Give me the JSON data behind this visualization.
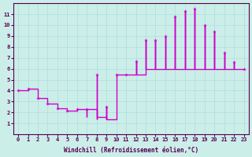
{
  "xlabel": "Windchill (Refroidissement éolien,°C)",
  "bg_color": "#cceee8",
  "grid_color": "#aadddd",
  "line_color": "#cc00cc",
  "xlim": [
    -0.5,
    23.5
  ],
  "ylim": [
    0,
    12
  ],
  "xticks": [
    0,
    1,
    2,
    3,
    4,
    5,
    6,
    7,
    8,
    9,
    10,
    11,
    12,
    13,
    14,
    15,
    16,
    17,
    18,
    19,
    20,
    21,
    22,
    23
  ],
  "yticks": [
    1,
    2,
    3,
    4,
    5,
    6,
    7,
    8,
    9,
    10,
    11
  ],
  "hours": [
    0,
    1,
    2,
    3,
    4,
    5,
    6,
    7,
    8,
    9,
    10,
    11,
    12,
    13,
    14,
    15,
    16,
    17,
    18,
    19,
    20,
    21,
    22,
    23
  ],
  "highs": [
    4.0,
    4.2,
    3.3,
    2.8,
    2.4,
    2.2,
    2.3,
    2.3,
    5.5,
    2.5,
    5.5,
    5.5,
    6.7,
    8.6,
    8.6,
    9.0,
    10.8,
    11.3,
    11.5,
    10.0,
    9.4,
    7.5,
    6.6,
    6.0
  ],
  "lows": [
    4.0,
    4.2,
    3.3,
    2.8,
    2.4,
    2.2,
    2.3,
    1.6,
    1.4,
    1.4,
    5.5,
    5.5,
    5.5,
    6.0,
    6.0,
    6.0,
    6.0,
    6.0,
    6.0,
    6.0,
    6.0,
    6.0,
    6.0,
    6.0
  ],
  "step_values": [
    4.0,
    4.2,
    3.3,
    2.8,
    2.4,
    2.2,
    2.3,
    2.3,
    1.6,
    1.4,
    5.5,
    5.5,
    5.5,
    6.0,
    6.0,
    6.0,
    6.0,
    6.0,
    6.0,
    6.0,
    6.0,
    6.0,
    6.0,
    6.0
  ]
}
